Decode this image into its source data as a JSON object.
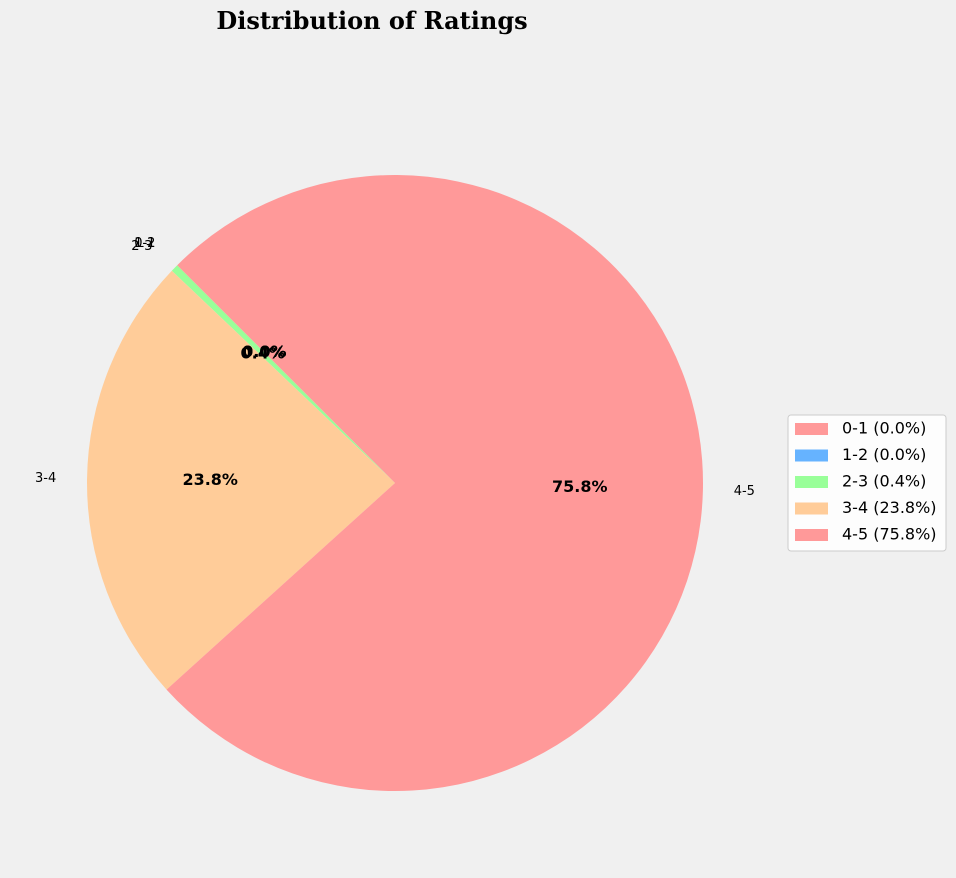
{
  "chart_data": {
    "type": "pie",
    "title": "Distribution of Ratings",
    "categories": [
      "0-1",
      "1-2",
      "2-3",
      "3-4",
      "4-5"
    ],
    "values": [
      0.0,
      0.0,
      0.4,
      23.8,
      75.8
    ],
    "percent_labels": [
      "0.0%",
      "0.0%",
      "0.4%",
      "23.8%",
      "75.8%"
    ],
    "legend_entries": [
      "0-1 (0.0%)",
      "1-2 (0.0%)",
      "2-3 (0.4%)",
      "3-4 (23.8%)",
      "4-5 (75.8%)"
    ],
    "colors": [
      "#ff9999",
      "#66b3ff",
      "#99ff99",
      "#ffcc99",
      "#ff9999"
    ],
    "legend_placement": "center-right",
    "start_angle_degrees": 135,
    "direction": "counterclockwise"
  }
}
